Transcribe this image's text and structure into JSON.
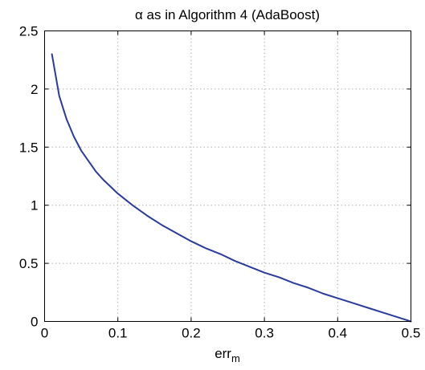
{
  "chart_data": {
    "type": "line",
    "title_prefix": "α",
    "title_rest": " as in Algorithm 4 (AdaBoost)",
    "xlabel_main": "err",
    "xlabel_sub": "m",
    "ylabel": "",
    "xlim": [
      0,
      0.5
    ],
    "ylim": [
      0,
      2.5
    ],
    "x_ticks": [
      0,
      0.1,
      0.2,
      0.3,
      0.4,
      0.5
    ],
    "x_tick_labels": [
      "0",
      "0.1",
      "0.2",
      "0.3",
      "0.4",
      "0.5"
    ],
    "y_ticks": [
      0,
      0.5,
      1,
      1.5,
      2,
      2.5
    ],
    "y_tick_labels": [
      "0",
      "0.5",
      "1",
      "1.5",
      "2",
      "2.5"
    ],
    "grid": true,
    "series": [
      {
        "color": "#2a3b9c",
        "x": [
          0.01,
          0.02,
          0.03,
          0.04,
          0.05,
          0.06,
          0.07,
          0.08,
          0.09,
          0.1,
          0.12,
          0.14,
          0.16,
          0.18,
          0.2,
          0.22,
          0.24,
          0.26,
          0.28,
          0.3,
          0.32,
          0.34,
          0.36,
          0.38,
          0.4,
          0.42,
          0.44,
          0.46,
          0.48,
          0.5
        ],
        "y": [
          2.3,
          1.94,
          1.74,
          1.59,
          1.47,
          1.38,
          1.29,
          1.22,
          1.16,
          1.1,
          1.0,
          0.91,
          0.83,
          0.76,
          0.69,
          0.63,
          0.58,
          0.52,
          0.47,
          0.42,
          0.38,
          0.33,
          0.29,
          0.24,
          0.2,
          0.16,
          0.12,
          0.08,
          0.04,
          0.0
        ]
      }
    ]
  }
}
